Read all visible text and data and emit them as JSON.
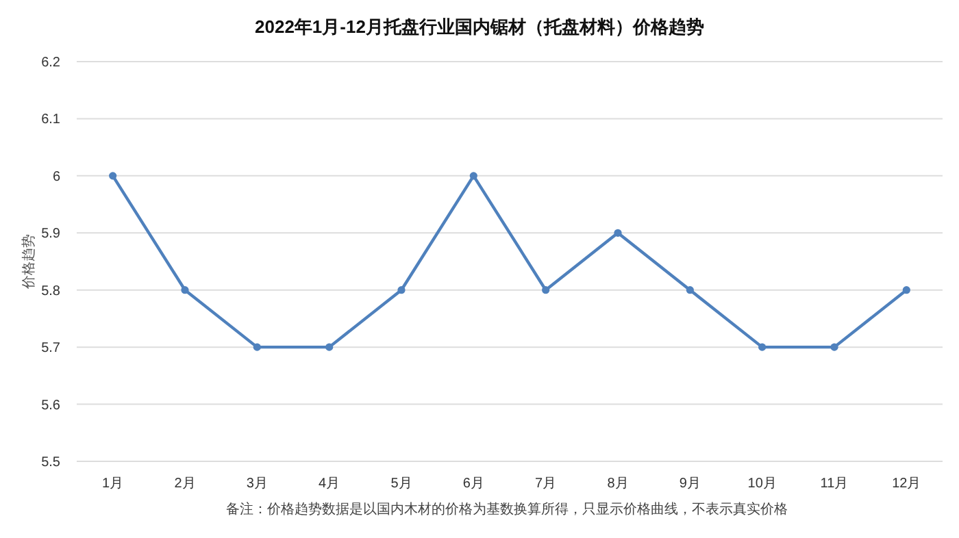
{
  "chart_data": {
    "type": "line",
    "title": "2022年1月-12月托盘行业国内锯材（托盘材料）价格趋势",
    "ylabel": "价格趋势",
    "annotations": [
      "备注：价格趋势数据是以国内木材的价格为基数换算所得，只显示价格曲线，不表示真实价格"
    ],
    "categories": [
      "1月",
      "2月",
      "3月",
      "4月",
      "5月",
      "6月",
      "7月",
      "8月",
      "9月",
      "10月",
      "11月",
      "12月"
    ],
    "series": [
      {
        "color": "#4f81bd",
        "values": [
          6,
          5.8,
          5.7,
          5.7,
          5.8,
          6,
          5.8,
          5.9,
          5.8,
          5.7,
          5.7,
          5.8
        ]
      }
    ],
    "ylim": [
      5.5,
      6.2
    ],
    "yticks": [
      5.5,
      5.6,
      5.7,
      5.8,
      5.9,
      6,
      6.1,
      6.2
    ],
    "grid": "y",
    "marker": "circle",
    "line_style": "solid"
  }
}
